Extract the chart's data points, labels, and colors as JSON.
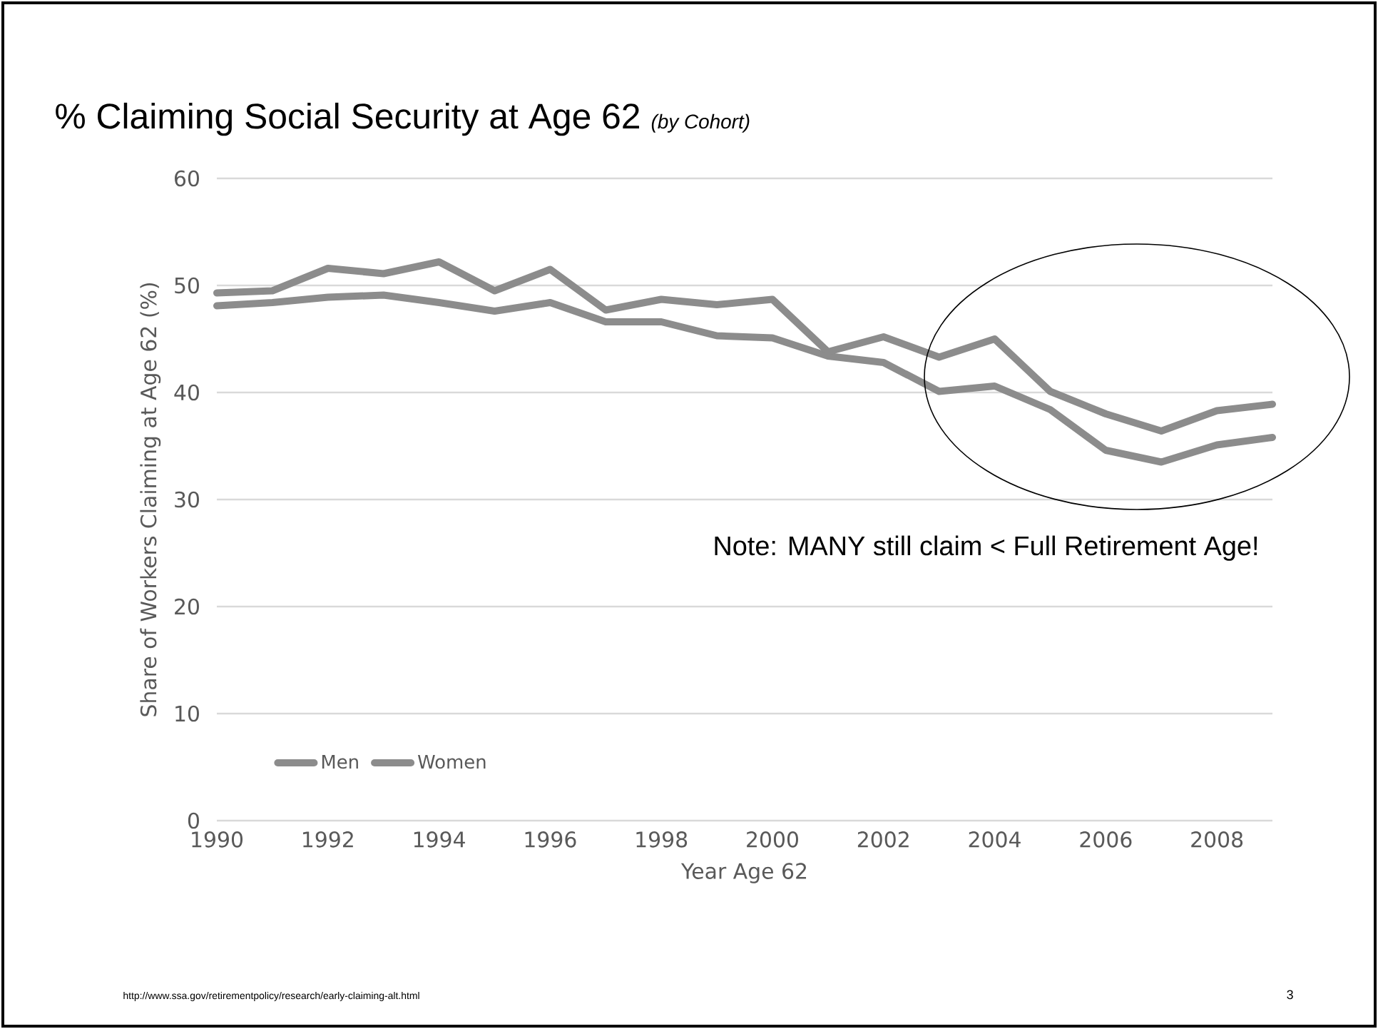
{
  "chart_data": {
    "type": "line",
    "title": "% Claiming Social Security at Age 62",
    "subtitle": "(by Cohort)",
    "xlabel": "Year Age 62",
    "ylabel": "Share of Workers Claiming at Age 62 (%)",
    "x": [
      1990,
      1991,
      1992,
      1993,
      1994,
      1995,
      1996,
      1997,
      1998,
      1999,
      2000,
      2001,
      2002,
      2003,
      2004,
      2005,
      2006,
      2007,
      2008,
      2009
    ],
    "series": [
      {
        "name": "Men",
        "color": "#8c8c8c",
        "values": [
          48.1,
          48.4,
          48.9,
          49.1,
          48.4,
          47.6,
          48.4,
          46.6,
          46.6,
          45.3,
          45.1,
          43.4,
          42.8,
          40.1,
          40.6,
          38.4,
          34.6,
          33.5,
          35.1,
          35.8
        ]
      },
      {
        "name": "Women",
        "color": "#8c8c8c",
        "values": [
          49.3,
          49.5,
          51.6,
          51.1,
          52.2,
          49.5,
          51.5,
          47.7,
          48.7,
          48.2,
          48.7,
          43.8,
          45.2,
          43.3,
          45.0,
          40.1,
          38.0,
          36.4,
          38.3,
          38.9
        ]
      }
    ],
    "xlim": [
      1990,
      2009
    ],
    "ylim": [
      0,
      60
    ],
    "xticks": [
      1990,
      1992,
      1994,
      1996,
      1998,
      2000,
      2002,
      2004,
      2006,
      2008
    ],
    "yticks": [
      0,
      10,
      20,
      30,
      40,
      50,
      60
    ],
    "grid": "y",
    "legend": "bottom left",
    "marker": "none",
    "line_style": "solid",
    "annotations": [
      "Note: MANY still claim < Full Retirement Age!",
      "http://www.ssa.gov/retirementpolicy/research/early-claiming-alt.html",
      "3"
    ]
  }
}
